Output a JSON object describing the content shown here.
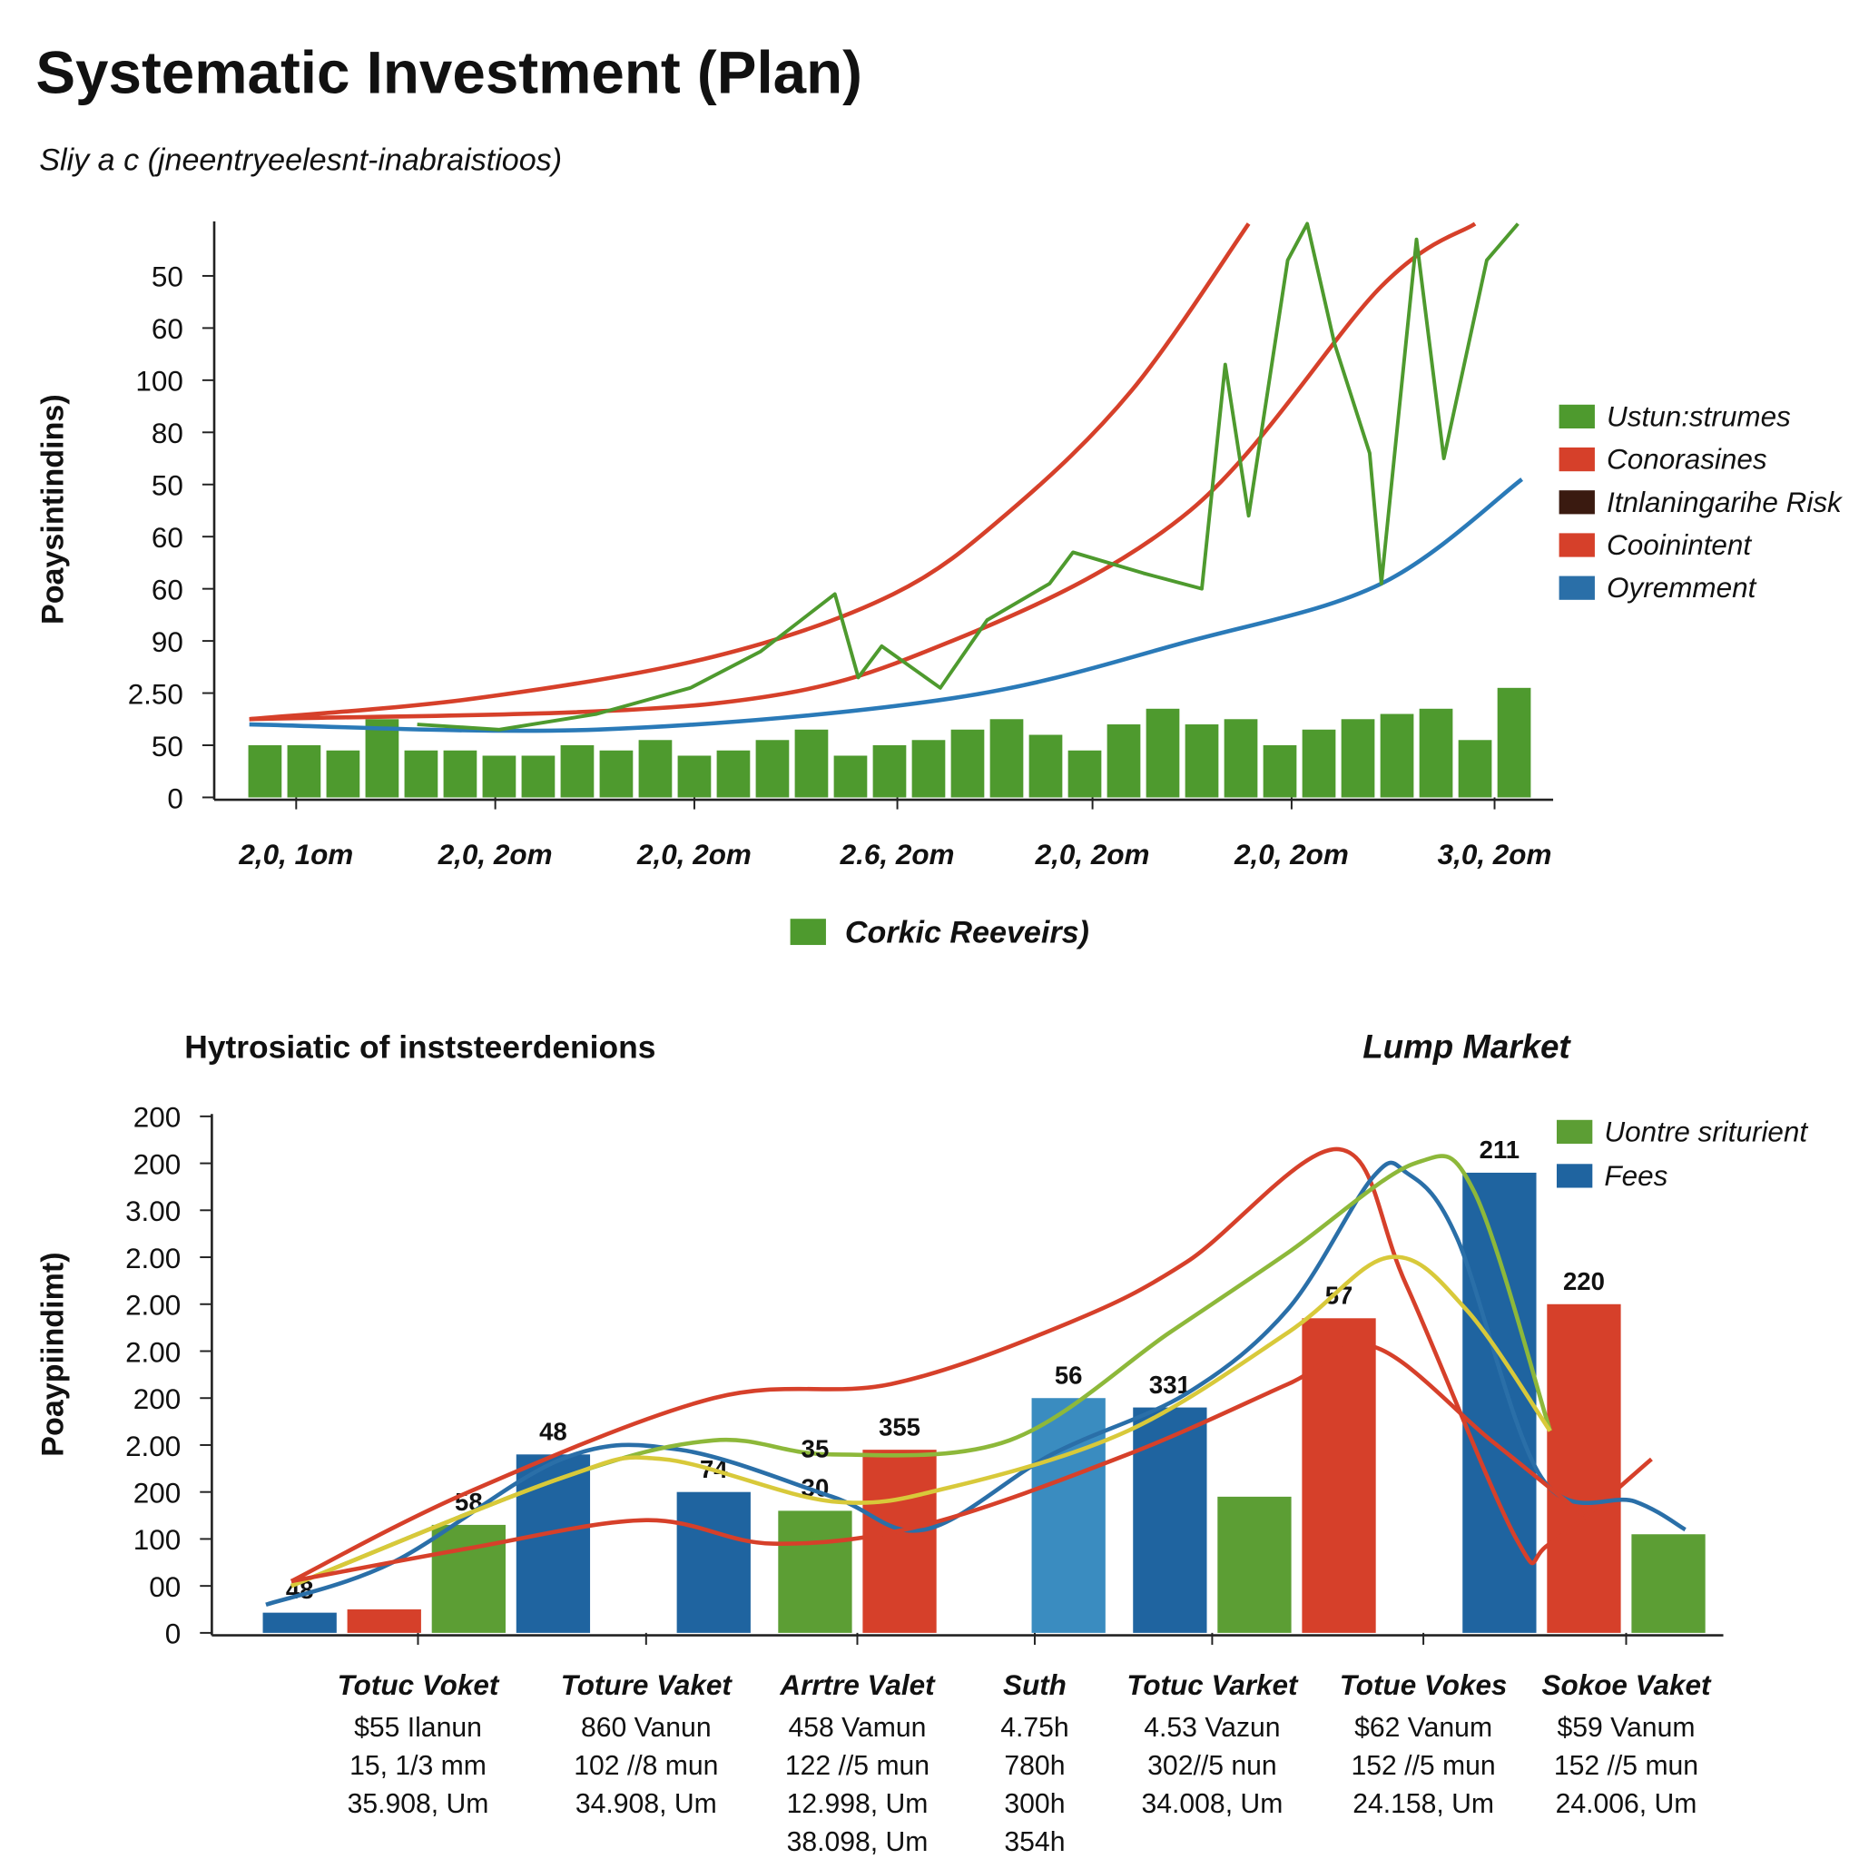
{
  "chart_data": [
    {
      "type": "combo",
      "title": "Systematic Investment (Plan)",
      "subtitle": "Sliy a c (jneentryeelesnt-inabraistioos)",
      "ylabel": "Poaysintindins)",
      "ylim": [
        0,
        11
      ],
      "yticks": [
        0,
        {
          "value": 1,
          "label": "50"
        },
        {
          "value": 2,
          "label": "2.50"
        },
        {
          "value": 3,
          "label": "90"
        },
        {
          "value": 4,
          "label": "60"
        },
        {
          "value": 5,
          "label": "60"
        },
        {
          "value": 6,
          "label": "50"
        },
        {
          "value": 7,
          "label": "80"
        },
        {
          "value": 8,
          "label": "100"
        },
        {
          "value": 9,
          "label": "60"
        },
        {
          "value": 10,
          "label": "50"
        }
      ],
      "xlim": [
        -1.3,
        33
      ],
      "xticks": [
        {
          "value": 0.8,
          "label": "2,0, 1om"
        },
        {
          "value": 5.9,
          "label": "2,0, 2om"
        },
        {
          "value": 11,
          "label": "2,0, 2om"
        },
        {
          "value": 16.2,
          "label": "2.6, 2om"
        },
        {
          "value": 21.2,
          "label": "2,0, 2om"
        },
        {
          "value": 26.3,
          "label": "2,0, 2om"
        },
        {
          "value": 31.5,
          "label": "3,0, 2om"
        }
      ],
      "series": [
        {
          "type": "bar",
          "name": "Corkic Reeveirs)",
          "color": "#4e9a2e",
          "x": [
            0,
            1,
            2,
            3,
            4,
            5,
            6,
            7,
            8,
            9,
            10,
            11,
            12,
            13,
            14,
            15,
            16,
            17,
            18,
            19,
            20,
            21,
            22,
            23,
            24,
            25,
            26,
            27,
            28,
            29,
            30,
            31,
            32
          ],
          "values": [
            1.0,
            1.0,
            0.9,
            1.5,
            0.9,
            0.9,
            0.8,
            0.8,
            1.0,
            0.9,
            1.1,
            0.8,
            0.9,
            1.1,
            1.3,
            0.8,
            1.0,
            1.1,
            1.3,
            1.5,
            1.2,
            0.9,
            1.4,
            1.7,
            1.4,
            1.5,
            1.0,
            1.3,
            1.5,
            1.6,
            1.7,
            1.1,
            2.1
          ]
        },
        {
          "type": "line",
          "color": "#d6402a",
          "smooth": true,
          "x": [
            -0.4,
            5.4,
            11.5,
            16.1,
            19.1,
            22.2,
            25.2
          ],
          "values": [
            1.5,
            1.9,
            2.7,
            3.9,
            5.5,
            7.8,
            11
          ]
        },
        {
          "type": "line",
          "color": "#d6402a",
          "smooth": true,
          "x": [
            -0.4,
            11.5,
            17.6,
            23.7,
            28.6,
            31.0
          ],
          "values": [
            1.5,
            1.8,
            3.0,
            5.5,
            9.8,
            11
          ]
        },
        {
          "type": "line",
          "color": "#2a7ab8",
          "smooth": true,
          "x": [
            -0.4,
            8.5,
            17.6,
            23.7,
            28.6,
            32.2
          ],
          "values": [
            1.4,
            1.3,
            1.9,
            3.0,
            4.1,
            6.1
          ]
        },
        {
          "type": "line",
          "color": "#4e9a2e",
          "smooth": false,
          "x": [
            3.9,
            6.0,
            8.5,
            10.9,
            12.7,
            14.6,
            15.2,
            15.8,
            17.3,
            18.5,
            20.1,
            20.7,
            22.5,
            24.0,
            24.6,
            25.2,
            26.2,
            26.7,
            27.4,
            28.3,
            28.6,
            29.5,
            30.2,
            31.3,
            32.1
          ],
          "values": [
            1.4,
            1.3,
            1.6,
            2.1,
            2.8,
            3.9,
            2.3,
            2.9,
            2.1,
            3.4,
            4.1,
            4.7,
            4.3,
            4.0,
            8.3,
            5.4,
            10.3,
            11.0,
            8.7,
            6.6,
            4.1,
            10.7,
            6.5,
            10.3,
            11
          ]
        }
      ],
      "legend": {
        "position": "right",
        "items": [
          {
            "name": "Ustun:strumes",
            "color": "#4e9a2e"
          },
          {
            "name": "Conorasines",
            "color": "#d6402a"
          },
          {
            "name": "Itnlaningarihe Risk",
            "color": "#3a1a10"
          },
          {
            "name": "Cooinintent",
            "color": "#d6402a"
          },
          {
            "name": "Oyremment",
            "color": "#2a6fa8"
          }
        ]
      }
    },
    {
      "type": "combo",
      "title": "Hytrosiatic of inststeerdenions",
      "subtitle": "Lump Market",
      "ylabel": "Poaypiindimt)",
      "ylim": [
        0,
        11
      ],
      "yticks": [
        0,
        {
          "value": 1,
          "label": "00"
        },
        {
          "value": 2,
          "label": "100"
        },
        {
          "value": 3,
          "label": "200"
        },
        {
          "value": 4,
          "label": "2.00"
        },
        {
          "value": 5,
          "label": "200"
        },
        {
          "value": 6,
          "label": "2.00"
        },
        {
          "value": 7,
          "label": "2.00"
        },
        {
          "value": 8,
          "label": "2.00"
        },
        {
          "value": 9,
          "label": "3.00"
        },
        {
          "value": 10,
          "label": "200"
        },
        {
          "value": 11,
          "label": "200"
        }
      ],
      "xlim": [
        -1.04,
        16.85
      ],
      "xticks": [
        {
          "value": 1.4,
          "label": "Totuc Voket",
          "lines": [
            "$55 Ilanun",
            "15, 1/3 mm",
            "35.908, Um"
          ]
        },
        {
          "value": 4.1,
          "label": "Toture Vaket",
          "lines": [
            "860 Vanun",
            "102 //8 mun",
            "34.908, Um"
          ]
        },
        {
          "value": 6.6,
          "label": "Arrtre Valet",
          "lines": [
            "458 Vamun",
            "122 //5 mun",
            "12.998, Um",
            "38.098, Um"
          ]
        },
        {
          "value": 8.7,
          "label": "Suth",
          "lines": [
            "4.75h",
            "780h",
            "300h",
            "354h"
          ]
        },
        {
          "value": 10.8,
          "label": "Totuc Varket",
          "lines": [
            "4.53 Vazun",
            "302//5 nun",
            "34.008, Um"
          ]
        },
        {
          "value": 13.3,
          "label": "Totue Vokes",
          "lines": [
            "$62 Vanum",
            "152 //5 mun",
            "24.158, Um"
          ]
        },
        {
          "value": 15.7,
          "label": "Sokoe Vaket",
          "lines": [
            "$59 Vanum",
            "152 //5 mun",
            "24.006, Um"
          ]
        }
      ],
      "series": [
        {
          "type": "bar",
          "x": [
            0,
            1,
            2.0,
            3.0,
            4.9,
            6.1,
            7.1,
            9.1,
            10.3,
            11.3,
            12.3,
            14.2,
            15.2,
            16.2
          ],
          "values": [
            0.43,
            0.5,
            2.3,
            3.8,
            3.0,
            2.6,
            3.9,
            5.0,
            4.8,
            2.9,
            6.7,
            9.8,
            7.0,
            2.1
          ],
          "colors": [
            "#1f64a0",
            "#d6402a",
            "#5c9e34",
            "#1f64a0",
            "#1f64a0",
            "#5c9e34",
            "#d6402a",
            "#3a8cc0",
            "#1f64a0",
            "#5c9e34",
            "#d6402a",
            "#1f64a0",
            "#d6402a",
            "#5c9e34"
          ],
          "notes": [
            "48",
            null,
            "58",
            "48",
            "74",
            "30",
            "355",
            "56",
            "331",
            null,
            "57",
            "211",
            "220",
            null
          ]
        },
        {
          "type": "line",
          "color": "#d6402a",
          "smooth": true,
          "x": [
            -0.1,
            2.0,
            4.9,
            7.0,
            9.1,
            10.5,
            12.3,
            13.1,
            14.4,
            14.8,
            16.0
          ],
          "values": [
            1.1,
            3.0,
            5.0,
            5.3,
            6.6,
            7.9,
            10.3,
            7.4,
            2.0,
            1.9,
            3.7
          ]
        },
        {
          "type": "line",
          "color": "#2a6fa8",
          "smooth": true,
          "x": [
            -0.4,
            1.1,
            3.1,
            4.5,
            6.3,
            7.4,
            8.9,
            10.5,
            11.7,
            12.7,
            13.1,
            13.7,
            14.7,
            15.8,
            16.4
          ],
          "values": [
            0.6,
            1.5,
            3.7,
            3.9,
            2.9,
            2.2,
            3.8,
            5.1,
            6.9,
            9.7,
            9.8,
            8.4,
            3.3,
            2.8,
            2.2
          ]
        },
        {
          "type": "line",
          "color": "#8db83a",
          "smooth": true,
          "x": [
            -0.1,
            3.1,
            4.9,
            6.3,
            8.4,
            10.3,
            11.7,
            13.2,
            13.9,
            14.8
          ],
          "values": [
            1.0,
            3.3,
            4.1,
            3.8,
            4.1,
            6.4,
            8.1,
            10.0,
            9.4,
            4.3
          ]
        },
        {
          "type": "line",
          "color": "#d8c93a",
          "smooth": true,
          "x": [
            -0.1,
            3.1,
            4.3,
            6.3,
            7.7,
            9.8,
            11.7,
            12.9,
            13.8,
            14.8
          ],
          "values": [
            1.0,
            3.3,
            3.7,
            2.8,
            3.1,
            4.3,
            6.4,
            8.0,
            6.9,
            4.3
          ]
        },
        {
          "type": "line",
          "color": "#d6402a",
          "smooth": true,
          "x": [
            -0.1,
            2.0,
            4.1,
            5.6,
            7.4,
            9.8,
            11.7,
            12.7,
            14.1,
            15.2
          ],
          "values": [
            1.1,
            1.8,
            2.4,
            1.9,
            2.3,
            3.8,
            5.3,
            6.1,
            4.1,
            2.5
          ]
        }
      ],
      "annotations": [
        "35"
      ],
      "legend": {
        "position": "right",
        "items": [
          {
            "name": "Uontre sriturient",
            "color": "#5c9e34"
          },
          {
            "name": "Fees",
            "color": "#1f64a0"
          }
        ]
      }
    }
  ]
}
